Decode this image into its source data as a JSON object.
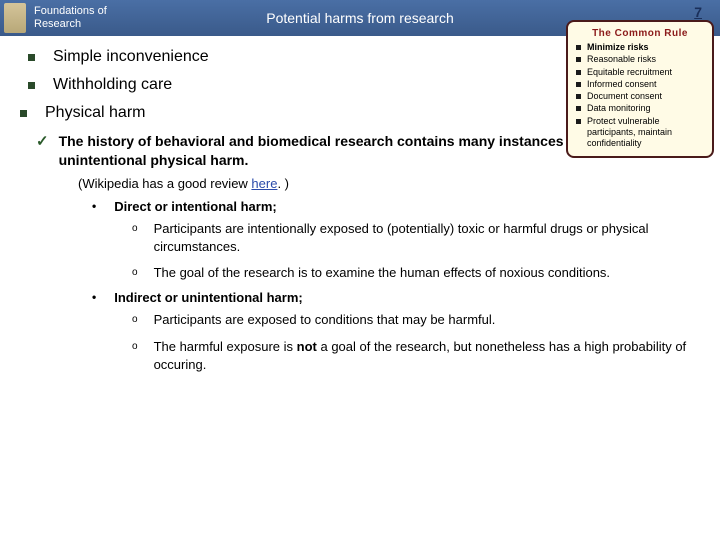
{
  "header": {
    "title_line1": "Foundations of",
    "title_line2": "Research",
    "center": "Potential harms from research",
    "page_number": "7"
  },
  "sidebox": {
    "title": "The Common Rule",
    "items": [
      {
        "text": "Minimize risks",
        "bold": true
      },
      {
        "text": "Reasonable risks",
        "bold": false
      },
      {
        "text": "Equitable recruitment",
        "bold": false
      },
      {
        "text": "Informed consent",
        "bold": false
      },
      {
        "text": "Document consent",
        "bold": false
      },
      {
        "text": "Data monitoring",
        "bold": false
      },
      {
        "text": "Protect vulnerable participants, maintain confidentiality",
        "bold": false
      }
    ]
  },
  "top_bullets": [
    "Simple inconvenience",
    "Withholding care",
    "Physical harm"
  ],
  "check_text": "The history of behavioral and biomedical research contains many instances of intentional or unintentional physical harm.",
  "wiki_prefix": "(Wikipedia has a good review ",
  "wiki_link": "here",
  "wiki_suffix": ". )",
  "sections": [
    {
      "heading": "Direct or intentional harm;",
      "points": [
        "Participants are intentionally exposed to (potentially) toxic or harmful drugs or physical circumstances.",
        "The goal of the research is to examine the human effects of noxious conditions."
      ]
    },
    {
      "heading": "Indirect or unintentional harm;",
      "points": [
        "Participants are exposed to conditions that may be harmful.",
        {
          "pre": "The harmful exposure is ",
          "bold": "not",
          "post": " a goal of the research, but nonetheless has a high probability of occuring."
        }
      ]
    }
  ]
}
